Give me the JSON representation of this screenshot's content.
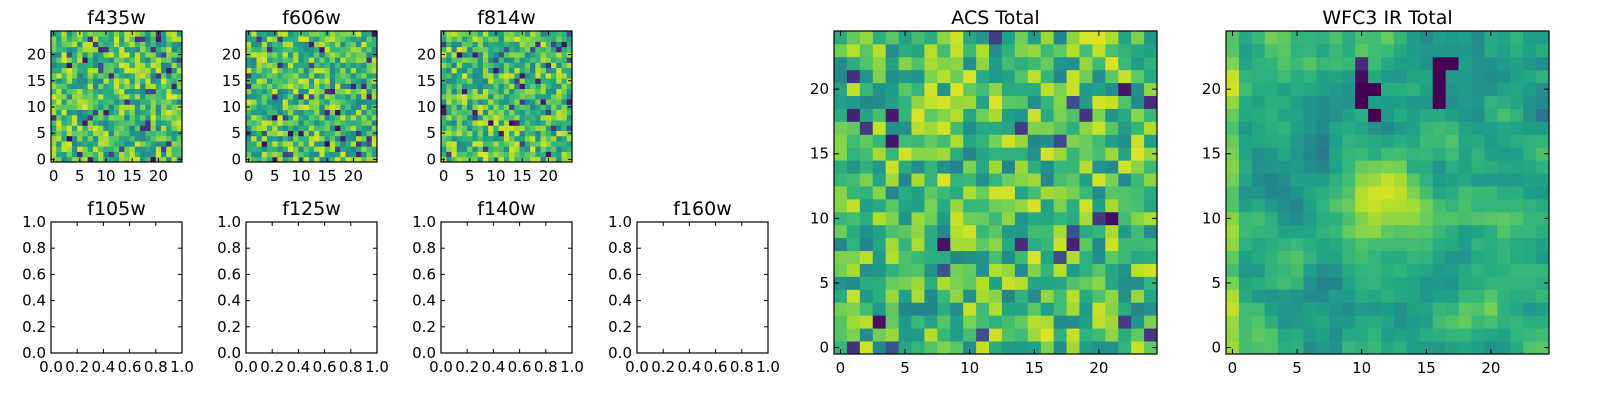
{
  "chart_data": [
    {
      "type": "heatmap",
      "title": "f435w",
      "xlim": [
        -0.5,
        24.5
      ],
      "ylim": [
        -0.5,
        24.5
      ],
      "xticks": [
        0,
        5,
        10,
        15,
        20
      ],
      "yticks": [
        0,
        5,
        10,
        15,
        20
      ],
      "xtick_labels": [
        "0",
        "5",
        "10",
        "15",
        "20"
      ],
      "ytick_labels": [
        "0",
        "5",
        "10",
        "15",
        "20"
      ],
      "grid_size": [
        25,
        25
      ],
      "colormap": "viridis",
      "appearance": "noisy: mostly yellow-green with scattered dark cells"
    },
    {
      "type": "heatmap",
      "title": "f606w",
      "xlim": [
        -0.5,
        24.5
      ],
      "ylim": [
        -0.5,
        24.5
      ],
      "xticks": [
        0,
        5,
        10,
        15,
        20
      ],
      "yticks": [
        0,
        5,
        10,
        15,
        20
      ],
      "xtick_labels": [
        "0",
        "5",
        "10",
        "15",
        "20"
      ],
      "ytick_labels": [
        "0",
        "5",
        "10",
        "15",
        "20"
      ],
      "grid_size": [
        25,
        25
      ],
      "colormap": "viridis",
      "appearance": "noisy: mostly yellow-green with scattered dark cells"
    },
    {
      "type": "heatmap",
      "title": "f814w",
      "xlim": [
        -0.5,
        24.5
      ],
      "ylim": [
        -0.5,
        24.5
      ],
      "xticks": [
        0,
        5,
        10,
        15,
        20
      ],
      "yticks": [
        0,
        5,
        10,
        15,
        20
      ],
      "xtick_labels": [
        "0",
        "5",
        "10",
        "15",
        "20"
      ],
      "ytick_labels": [
        "0",
        "5",
        "10",
        "15",
        "20"
      ],
      "grid_size": [
        25,
        25
      ],
      "colormap": "viridis",
      "appearance": "noisy: mostly yellow-green with scattered dark cells"
    },
    {
      "type": "line",
      "title": "f105w",
      "series": [],
      "xlim": [
        0,
        1
      ],
      "ylim": [
        0,
        1
      ],
      "xtick_labels": [
        "0.0",
        "0.2",
        "0.4",
        "0.6",
        "0.8",
        "1.0"
      ],
      "ytick_labels": [
        "0.0",
        "0.2",
        "0.4",
        "0.6",
        "0.8",
        "1.0"
      ]
    },
    {
      "type": "line",
      "title": "f125w",
      "series": [],
      "xlim": [
        0,
        1
      ],
      "ylim": [
        0,
        1
      ],
      "xtick_labels": [
        "0.0",
        "0.2",
        "0.4",
        "0.6",
        "0.8",
        "1.0"
      ],
      "ytick_labels": [
        "0.0",
        "0.2",
        "0.4",
        "0.6",
        "0.8",
        "1.0"
      ]
    },
    {
      "type": "line",
      "title": "f140w",
      "series": [],
      "xlim": [
        0,
        1
      ],
      "ylim": [
        0,
        1
      ],
      "xtick_labels": [
        "0.0",
        "0.2",
        "0.4",
        "0.6",
        "0.8",
        "1.0"
      ],
      "ytick_labels": [
        "0.0",
        "0.2",
        "0.4",
        "0.6",
        "0.8",
        "1.0"
      ]
    },
    {
      "type": "line",
      "title": "f160w",
      "series": [],
      "xlim": [
        0,
        1
      ],
      "ylim": [
        0,
        1
      ],
      "xtick_labels": [
        "0.0",
        "0.2",
        "0.4",
        "0.6",
        "0.8",
        "1.0"
      ],
      "ytick_labels": [
        "0.0",
        "0.2",
        "0.4",
        "0.6",
        "0.8",
        "1.0"
      ]
    },
    {
      "type": "heatmap",
      "title": "ACS Total",
      "xlim": [
        -0.5,
        24.5
      ],
      "ylim": [
        -0.5,
        24.5
      ],
      "xticks": [
        0,
        5,
        10,
        15,
        20
      ],
      "yticks": [
        0,
        5,
        10,
        15,
        20
      ],
      "xtick_labels": [
        "0",
        "5",
        "10",
        "15",
        "20"
      ],
      "ytick_labels": [
        "0",
        "5",
        "10",
        "15",
        "20"
      ],
      "grid_size": [
        25,
        25
      ],
      "colormap": "viridis",
      "appearance": "noisy green/yellow field with scattered dark purple cells"
    },
    {
      "type": "heatmap",
      "title": "WFC3 IR Total",
      "xlim": [
        -0.5,
        24.5
      ],
      "ylim": [
        -0.5,
        24.5
      ],
      "xticks": [
        0,
        5,
        10,
        15,
        20
      ],
      "yticks": [
        0,
        5,
        10,
        15,
        20
      ],
      "xtick_labels": [
        "0",
        "5",
        "10",
        "15",
        "20"
      ],
      "ytick_labels": [
        "0",
        "5",
        "10",
        "15",
        "20"
      ],
      "grid_size": [
        25,
        25
      ],
      "colormap": "viridis",
      "appearance": "smoother green field with a bright yellow blob near center and dark patches upper area",
      "bright_spot": [
        12,
        12
      ]
    }
  ]
}
